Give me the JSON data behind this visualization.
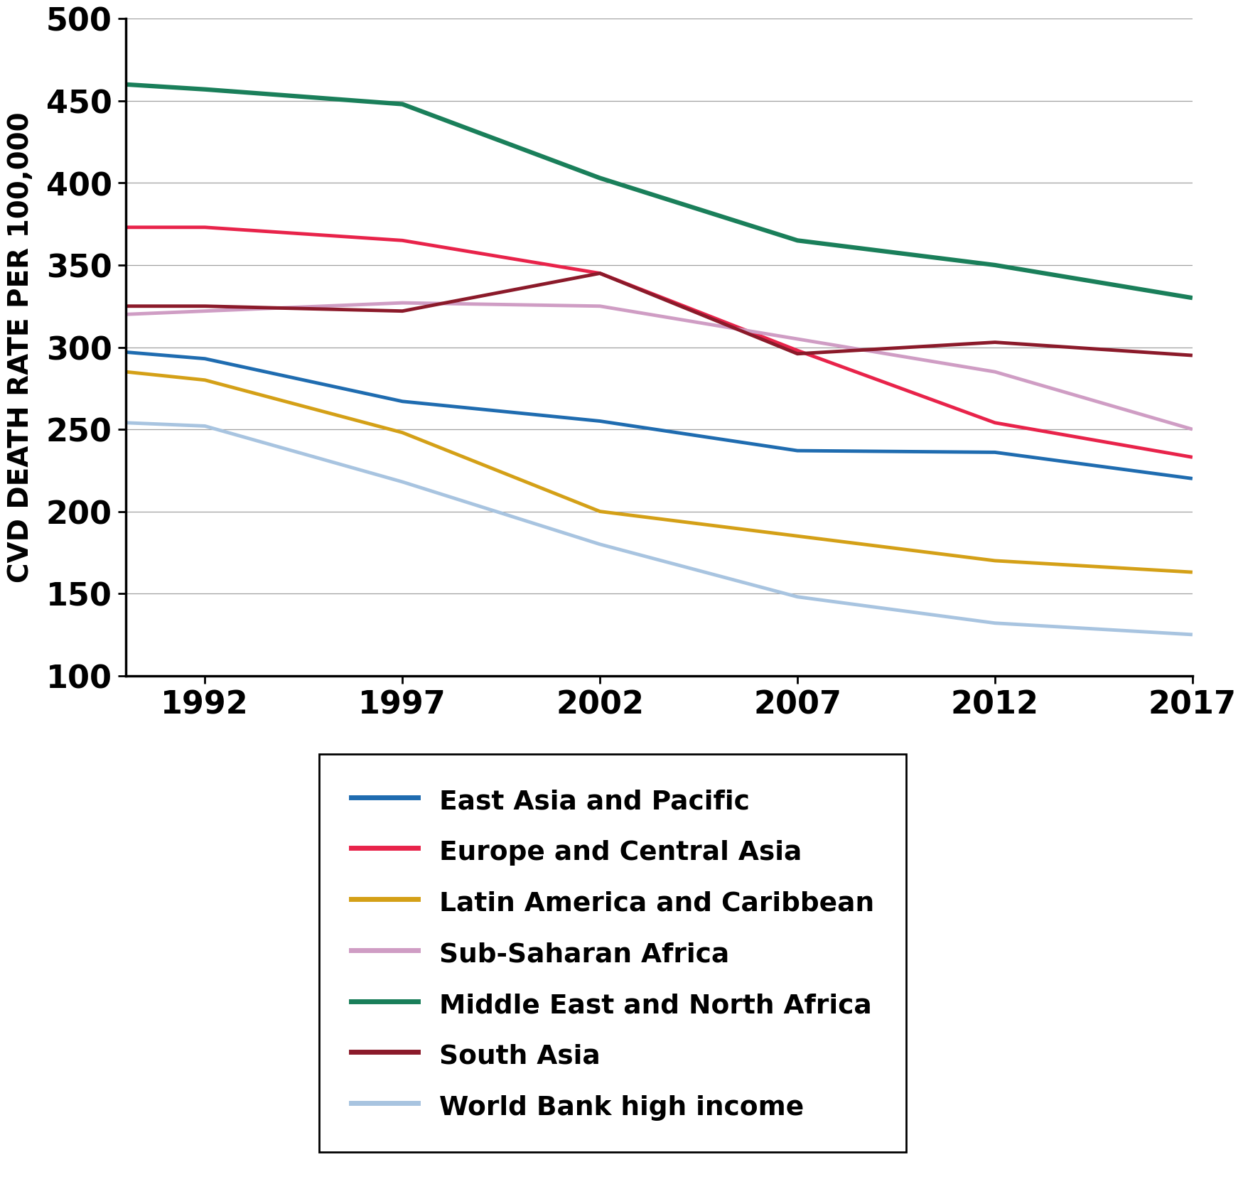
{
  "years": [
    1990,
    1992,
    1997,
    2002,
    2007,
    2012,
    2017
  ],
  "series": {
    "East Asia and Pacific": {
      "color": "#1F6CB0",
      "linewidth": 3.5,
      "values": [
        297,
        293,
        267,
        255,
        237,
        236,
        220
      ]
    },
    "Europe and Central Asia": {
      "color": "#E8234A",
      "linewidth": 3.5,
      "values": [
        373,
        373,
        365,
        345,
        298,
        254,
        233
      ]
    },
    "Latin America and Caribbean": {
      "color": "#D4A017",
      "linewidth": 3.5,
      "values": [
        285,
        280,
        248,
        200,
        185,
        170,
        163
      ]
    },
    "Sub-Saharan Africa": {
      "color": "#CF9DC4",
      "linewidth": 3.5,
      "values": [
        320,
        322,
        327,
        325,
        305,
        285,
        250
      ]
    },
    "Middle East and North Africa": {
      "color": "#1A7F5A",
      "linewidth": 4.5,
      "values": [
        460,
        457,
        448,
        403,
        365,
        350,
        330
      ]
    },
    "South Asia": {
      "color": "#8B1A2A",
      "linewidth": 3.5,
      "values": [
        325,
        325,
        322,
        345,
        296,
        303,
        295
      ]
    },
    "World Bank high income": {
      "color": "#A8C4E0",
      "linewidth": 3.5,
      "values": [
        254,
        252,
        218,
        180,
        148,
        132,
        125
      ]
    }
  },
  "ylabel": "CVD DEATH RATE PER 100,000",
  "xlim": [
    1990,
    2017
  ],
  "ylim": [
    100,
    500
  ],
  "yticks": [
    100,
    150,
    200,
    250,
    300,
    350,
    400,
    450,
    500
  ],
  "xticks": [
    1992,
    1997,
    2002,
    2007,
    2012,
    2017
  ],
  "tick_fontsize": 32,
  "ylabel_fontsize": 28,
  "legend_fontsize": 27
}
